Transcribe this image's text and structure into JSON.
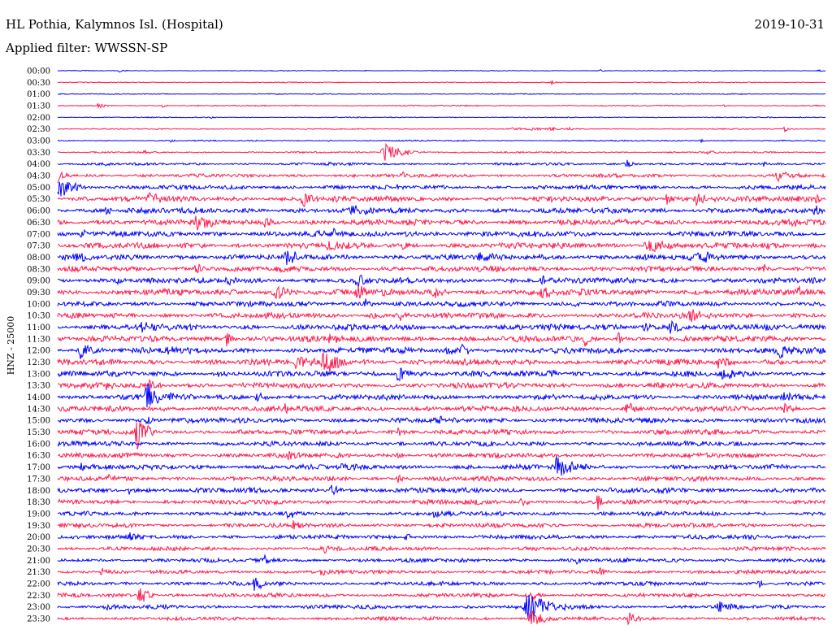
{
  "chart_data": {
    "type": "line",
    "title": "HL Pothia, Kalymnos Isl. (Hospital)",
    "subtitle": "Applied filter: WWSSN-SP",
    "date": "2019-10-31",
    "ylabel": "HNZ - 25000",
    "trace_scale": 25000,
    "x_range": [
      0,
      30
    ],
    "grid": false,
    "colors": [
      "#0000ff",
      "#ff1a4d"
    ],
    "rows": [
      {
        "time": "00:00",
        "noise": 1000,
        "events": [
          {
            "t": 2.4,
            "amp": 3800,
            "dur": 0.3
          },
          {
            "t": 12.0,
            "amp": 2000,
            "dur": 0.3
          },
          {
            "t": 21.2,
            "amp": 3000,
            "dur": 0.3
          },
          {
            "t": 29.7,
            "amp": 3000,
            "dur": 0.3
          }
        ]
      },
      {
        "time": "00:30",
        "noise": 1200,
        "events": [
          {
            "t": 1.6,
            "amp": 2500,
            "dur": 0.3
          },
          {
            "t": 19.3,
            "amp": 4500,
            "dur": 0.4
          },
          {
            "t": 25.0,
            "amp": 2500,
            "dur": 0.3
          }
        ]
      },
      {
        "time": "01:00",
        "noise": 1200,
        "events": [
          {
            "t": 8.6,
            "amp": 2500,
            "dur": 0.3
          },
          {
            "t": 22.5,
            "amp": 2500,
            "dur": 0.3
          }
        ]
      },
      {
        "time": "01:30",
        "noise": 1500,
        "events": [
          {
            "t": 1.6,
            "amp": 8800,
            "dur": 0.5
          },
          {
            "t": 4.1,
            "amp": 4500,
            "dur": 0.3
          },
          {
            "t": 26.0,
            "amp": 2500,
            "dur": 0.3
          }
        ]
      },
      {
        "time": "02:00",
        "noise": 1200,
        "events": [
          {
            "t": 6.0,
            "amp": 2000,
            "dur": 0.3
          },
          {
            "t": 29.0,
            "amp": 2500,
            "dur": 0.3
          }
        ]
      },
      {
        "time": "02:30",
        "noise": 1500,
        "events": [
          {
            "t": 17.8,
            "amp": 3500,
            "dur": 0.8
          },
          {
            "t": 18.5,
            "amp": 3500,
            "dur": 0.8
          },
          {
            "t": 19.2,
            "amp": 3500,
            "dur": 0.8
          },
          {
            "t": 19.9,
            "amp": 3000,
            "dur": 0.6
          },
          {
            "t": 28.4,
            "amp": 5500,
            "dur": 0.4
          }
        ]
      },
      {
        "time": "03:00",
        "noise": 1500,
        "events": [
          {
            "t": 4.4,
            "amp": 3800,
            "dur": 0.3
          },
          {
            "t": 10.6,
            "amp": 3800,
            "dur": 0.3
          },
          {
            "t": 25.1,
            "amp": 4500,
            "dur": 0.3
          }
        ]
      },
      {
        "time": "03:30",
        "noise": 2000,
        "events": [
          {
            "t": 3.4,
            "amp": 3800,
            "dur": 0.4
          },
          {
            "t": 12.8,
            "amp": 21200,
            "dur": 1.4
          },
          {
            "t": 25.4,
            "amp": 3800,
            "dur": 0.4
          }
        ]
      },
      {
        "time": "04:00",
        "noise": 3000,
        "events": [
          {
            "t": 1.8,
            "amp": 6200,
            "dur": 0.4
          },
          {
            "t": 10.4,
            "amp": 7500,
            "dur": 0.4
          },
          {
            "t": 22.2,
            "amp": 11200,
            "dur": 0.6
          },
          {
            "t": 27.6,
            "amp": 6200,
            "dur": 0.4
          }
        ]
      },
      {
        "time": "04:30",
        "noise": 4500,
        "events": [
          {
            "t": 0.0,
            "amp": 17500,
            "dur": 0.6
          },
          {
            "t": 13.5,
            "amp": 7500,
            "dur": 0.5
          },
          {
            "t": 28.1,
            "amp": 13800,
            "dur": 1.0
          }
        ]
      },
      {
        "time": "05:00",
        "noise": 5500,
        "events": [
          {
            "t": 0.0,
            "amp": 26200,
            "dur": 1.3
          },
          {
            "t": 13.3,
            "amp": 7500,
            "dur": 0.5
          }
        ]
      },
      {
        "time": "05:30",
        "noise": 7000,
        "events": [
          {
            "t": 3.6,
            "amp": 13800,
            "dur": 0.8
          },
          {
            "t": 9.6,
            "amp": 19200,
            "dur": 1.0
          },
          {
            "t": 23.8,
            "amp": 13800,
            "dur": 0.7
          },
          {
            "t": 24.9,
            "amp": 13800,
            "dur": 0.8
          },
          {
            "t": 29.6,
            "amp": 10500,
            "dur": 0.4
          }
        ]
      },
      {
        "time": "06:00",
        "noise": 7000,
        "events": [
          {
            "t": 1.9,
            "amp": 10000,
            "dur": 0.5
          },
          {
            "t": 11.5,
            "amp": 15800,
            "dur": 0.9
          },
          {
            "t": 29.6,
            "amp": 10500,
            "dur": 0.4
          }
        ]
      },
      {
        "time": "06:30",
        "noise": 7500,
        "events": [
          {
            "t": 5.4,
            "amp": 17500,
            "dur": 1.0
          },
          {
            "t": 8.1,
            "amp": 10500,
            "dur": 0.6
          },
          {
            "t": 28.7,
            "amp": 10500,
            "dur": 0.5
          }
        ]
      },
      {
        "time": "07:00",
        "noise": 7000,
        "events": [
          {
            "t": 0.9,
            "amp": 10500,
            "dur": 0.6
          },
          {
            "t": 10.8,
            "amp": 10500,
            "dur": 0.6
          },
          {
            "t": 13.6,
            "amp": 8800,
            "dur": 0.5
          }
        ]
      },
      {
        "time": "07:30",
        "noise": 7500,
        "events": [
          {
            "t": 10.6,
            "amp": 14000,
            "dur": 0.8
          },
          {
            "t": 13.5,
            "amp": 10500,
            "dur": 0.6
          },
          {
            "t": 23.1,
            "amp": 15800,
            "dur": 1.6
          }
        ]
      },
      {
        "time": "08:00",
        "noise": 7500,
        "events": [
          {
            "t": 0.8,
            "amp": 10500,
            "dur": 0.7
          },
          {
            "t": 8.9,
            "amp": 15800,
            "dur": 0.9
          },
          {
            "t": 16.5,
            "amp": 10500,
            "dur": 0.6
          },
          {
            "t": 25.1,
            "amp": 15800,
            "dur": 0.8
          }
        ]
      },
      {
        "time": "08:30",
        "noise": 7000,
        "events": [
          {
            "t": 5.4,
            "amp": 10500,
            "dur": 0.8
          },
          {
            "t": 27.6,
            "amp": 10500,
            "dur": 0.6
          }
        ]
      },
      {
        "time": "09:00",
        "noise": 7000,
        "events": [
          {
            "t": 2.3,
            "amp": 10500,
            "dur": 0.6
          },
          {
            "t": 6.6,
            "amp": 10500,
            "dur": 0.6
          },
          {
            "t": 11.7,
            "amp": 12200,
            "dur": 0.8
          },
          {
            "t": 18.9,
            "amp": 12200,
            "dur": 0.6
          }
        ]
      },
      {
        "time": "09:30",
        "noise": 8000,
        "events": [
          {
            "t": 8.5,
            "amp": 14000,
            "dur": 1.2
          },
          {
            "t": 11.7,
            "amp": 17500,
            "dur": 1.0
          },
          {
            "t": 14.7,
            "amp": 12200,
            "dur": 0.7
          },
          {
            "t": 18.9,
            "amp": 14000,
            "dur": 0.7
          },
          {
            "t": 28.9,
            "amp": 10500,
            "dur": 0.5
          }
        ]
      },
      {
        "time": "10:00",
        "noise": 6500,
        "events": [
          {
            "t": 12.0,
            "amp": 10500,
            "dur": 0.6
          },
          {
            "t": 20.1,
            "amp": 8800,
            "dur": 0.5
          }
        ]
      },
      {
        "time": "10:30",
        "noise": 7000,
        "events": [
          {
            "t": 12.2,
            "amp": 8800,
            "dur": 0.5
          },
          {
            "t": 13.3,
            "amp": 14000,
            "dur": 0.6
          },
          {
            "t": 24.7,
            "amp": 15800,
            "dur": 0.9
          }
        ]
      },
      {
        "time": "11:00",
        "noise": 7500,
        "events": [
          {
            "t": 3.3,
            "amp": 10500,
            "dur": 0.6
          },
          {
            "t": 3.9,
            "amp": 10500,
            "dur": 0.6
          },
          {
            "t": 22.9,
            "amp": 10500,
            "dur": 0.6
          },
          {
            "t": 23.9,
            "amp": 15800,
            "dur": 1.0
          }
        ]
      },
      {
        "time": "11:30",
        "noise": 7500,
        "events": [
          {
            "t": 6.6,
            "amp": 15800,
            "dur": 0.6
          },
          {
            "t": 10.6,
            "amp": 14000,
            "dur": 0.7
          },
          {
            "t": 20.6,
            "amp": 15800,
            "dur": 0.6
          },
          {
            "t": 21.9,
            "amp": 10500,
            "dur": 0.5
          }
        ]
      },
      {
        "time": "12:00",
        "noise": 7500,
        "events": [
          {
            "t": 0.9,
            "amp": 17500,
            "dur": 0.9
          },
          {
            "t": 4.3,
            "amp": 10500,
            "dur": 0.5
          },
          {
            "t": 15.2,
            "amp": 10500,
            "dur": 0.5
          },
          {
            "t": 15.8,
            "amp": 15800,
            "dur": 0.7
          },
          {
            "t": 28.2,
            "amp": 19200,
            "dur": 0.9
          }
        ]
      },
      {
        "time": "12:30",
        "noise": 7500,
        "events": [
          {
            "t": 9.3,
            "amp": 14000,
            "dur": 1.0
          },
          {
            "t": 10.4,
            "amp": 30000,
            "dur": 1.2
          },
          {
            "t": 25.8,
            "amp": 12200,
            "dur": 0.7
          },
          {
            "t": 27.6,
            "amp": 10500,
            "dur": 0.6
          }
        ]
      },
      {
        "time": "13:00",
        "noise": 7000,
        "events": [
          {
            "t": 6.3,
            "amp": 10500,
            "dur": 0.5
          },
          {
            "t": 13.3,
            "amp": 17500,
            "dur": 0.9
          },
          {
            "t": 19.2,
            "amp": 10500,
            "dur": 0.6
          },
          {
            "t": 26.0,
            "amp": 14000,
            "dur": 0.8
          }
        ]
      },
      {
        "time": "13:30",
        "noise": 7000,
        "events": [
          {
            "t": 1.9,
            "amp": 8800,
            "dur": 0.5
          },
          {
            "t": 3.6,
            "amp": 14000,
            "dur": 0.6
          }
        ]
      },
      {
        "time": "14:00",
        "noise": 7000,
        "events": [
          {
            "t": 3.5,
            "amp": 30000,
            "dur": 1.0
          },
          {
            "t": 7.8,
            "amp": 12200,
            "dur": 0.7
          },
          {
            "t": 28.4,
            "amp": 10500,
            "dur": 0.5
          }
        ]
      },
      {
        "time": "14:30",
        "noise": 7000,
        "events": [
          {
            "t": 8.9,
            "amp": 8800,
            "dur": 0.5
          },
          {
            "t": 22.2,
            "amp": 14000,
            "dur": 0.7
          },
          {
            "t": 28.4,
            "amp": 10500,
            "dur": 0.5
          }
        ]
      },
      {
        "time": "15:00",
        "noise": 6500,
        "events": [
          {
            "t": 3.5,
            "amp": 10500,
            "dur": 0.6
          },
          {
            "t": 14.9,
            "amp": 8800,
            "dur": 0.5
          }
        ]
      },
      {
        "time": "15:30",
        "noise": 6500,
        "events": [
          {
            "t": 3.1,
            "amp": 35000,
            "dur": 0.9
          },
          {
            "t": 13.3,
            "amp": 10500,
            "dur": 0.5
          }
        ]
      },
      {
        "time": "16:00",
        "noise": 6000,
        "events": [
          {
            "t": 13.3,
            "amp": 8800,
            "dur": 0.5
          }
        ]
      },
      {
        "time": "16:30",
        "noise": 6000,
        "events": [
          {
            "t": 9.0,
            "amp": 10500,
            "dur": 0.6
          },
          {
            "t": 13.3,
            "amp": 8800,
            "dur": 0.5
          }
        ]
      },
      {
        "time": "17:00",
        "noise": 6500,
        "events": [
          {
            "t": 0.9,
            "amp": 8800,
            "dur": 0.5
          },
          {
            "t": 11.1,
            "amp": 8800,
            "dur": 0.5
          },
          {
            "t": 19.5,
            "amp": 21000,
            "dur": 1.2
          }
        ]
      },
      {
        "time": "17:30",
        "noise": 6000,
        "events": [
          {
            "t": 2.0,
            "amp": 8800,
            "dur": 0.5
          },
          {
            "t": 13.3,
            "amp": 8800,
            "dur": 0.5
          }
        ]
      },
      {
        "time": "18:00",
        "noise": 6500,
        "events": [
          {
            "t": 2.8,
            "amp": 8800,
            "dur": 0.5
          },
          {
            "t": 10.7,
            "amp": 12200,
            "dur": 0.8
          }
        ]
      },
      {
        "time": "18:30",
        "noise": 6000,
        "events": [
          {
            "t": 18.1,
            "amp": 8800,
            "dur": 0.5
          },
          {
            "t": 21.1,
            "amp": 23800,
            "dur": 0.3
          }
        ]
      },
      {
        "time": "19:00",
        "noise": 5500,
        "events": [
          {
            "t": 9.0,
            "amp": 10500,
            "dur": 0.5
          },
          {
            "t": 14.7,
            "amp": 8800,
            "dur": 0.5
          }
        ]
      },
      {
        "time": "19:30",
        "noise": 5500,
        "events": [
          {
            "t": 9.2,
            "amp": 10500,
            "dur": 0.6
          }
        ]
      },
      {
        "time": "20:00",
        "noise": 5500,
        "events": [
          {
            "t": 2.8,
            "amp": 8800,
            "dur": 0.5
          },
          {
            "t": 13.6,
            "amp": 10500,
            "dur": 0.5
          }
        ]
      },
      {
        "time": "20:30",
        "noise": 5000,
        "events": [
          {
            "t": 10.4,
            "amp": 10500,
            "dur": 0.5
          }
        ]
      },
      {
        "time": "21:00",
        "noise": 5000,
        "events": [
          {
            "t": 8.1,
            "amp": 8800,
            "dur": 0.4
          },
          {
            "t": 20.3,
            "amp": 8800,
            "dur": 0.4
          }
        ]
      },
      {
        "time": "21:30",
        "noise": 5000,
        "events": [
          {
            "t": 1.7,
            "amp": 8800,
            "dur": 0.4
          },
          {
            "t": 10.3,
            "amp": 8800,
            "dur": 0.4
          },
          {
            "t": 21.2,
            "amp": 8800,
            "dur": 0.4
          }
        ]
      },
      {
        "time": "22:00",
        "noise": 5000,
        "events": [
          {
            "t": 7.7,
            "amp": 19200,
            "dur": 0.6
          },
          {
            "t": 27.4,
            "amp": 8800,
            "dur": 0.4
          }
        ]
      },
      {
        "time": "22:30",
        "noise": 5000,
        "events": [
          {
            "t": 3.2,
            "amp": 21000,
            "dur": 0.8
          },
          {
            "t": 18.5,
            "amp": 10500,
            "dur": 0.5
          }
        ]
      },
      {
        "time": "23:00",
        "noise": 5000,
        "events": [
          {
            "t": 1.9,
            "amp": 7500,
            "dur": 0.4
          },
          {
            "t": 18.4,
            "amp": 35000,
            "dur": 1.5
          },
          {
            "t": 25.8,
            "amp": 14000,
            "dur": 0.8
          }
        ]
      },
      {
        "time": "23:30",
        "noise": 4500,
        "events": [
          {
            "t": 18.5,
            "amp": 20000,
            "dur": 1.0
          },
          {
            "t": 22.3,
            "amp": 17500,
            "dur": 0.5
          }
        ]
      }
    ]
  }
}
